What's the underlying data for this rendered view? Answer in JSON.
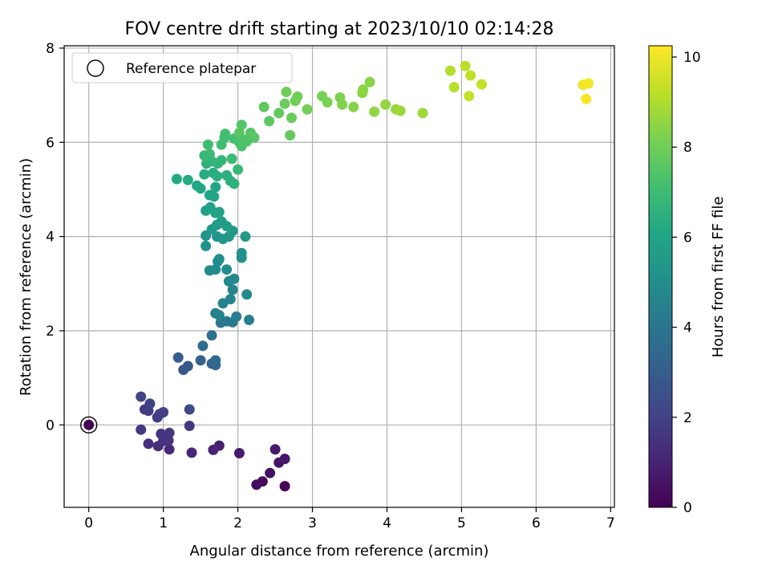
{
  "chart_data": {
    "type": "scatter",
    "title": "FOV centre drift starting at 2023/10/10 02:14:28",
    "xlabel": "Angular distance from reference (arcmin)",
    "ylabel": "Rotation from reference (arcmin)",
    "xlim": [
      -0.33,
      7.05
    ],
    "ylim": [
      -1.75,
      8.05
    ],
    "xticks": [
      "0",
      "1",
      "2",
      "3",
      "4",
      "5",
      "6",
      "7"
    ],
    "yticks": [
      "0",
      "2",
      "4",
      "6",
      "8"
    ],
    "grid": true,
    "colorbar": {
      "label": "Hours from first FF file",
      "colormap": "viridis",
      "range": [
        0,
        10.25
      ],
      "ticks": [
        "0",
        "2",
        "4",
        "6",
        "8",
        "10"
      ]
    },
    "legend": {
      "position": "top-left",
      "entries": [
        "Reference platepar"
      ]
    },
    "reference_point": {
      "x": 0,
      "y": 0
    },
    "series": [
      {
        "points": [
          [
            0,
            0,
            0.0
          ],
          [
            2.63,
            -1.3,
            0.15
          ],
          [
            2.33,
            -1.2,
            0.25
          ],
          [
            2.25,
            -1.27,
            0.35
          ],
          [
            2.43,
            -1.02,
            0.45
          ],
          [
            2.55,
            -0.8,
            0.55
          ],
          [
            2.63,
            -0.72,
            0.6
          ],
          [
            2.5,
            -0.52,
            0.7
          ],
          [
            2.02,
            -0.6,
            0.8
          ],
          [
            1.75,
            -0.44,
            0.9
          ],
          [
            1.67,
            -0.53,
            1.0
          ],
          [
            1.38,
            -0.59,
            1.1
          ],
          [
            1.08,
            -0.52,
            1.2
          ],
          [
            0.93,
            -0.45,
            1.3
          ],
          [
            0.8,
            -0.4,
            1.35
          ],
          [
            1.0,
            -0.34,
            1.45
          ],
          [
            1.07,
            -0.33,
            1.5
          ],
          [
            0.97,
            -0.19,
            1.55
          ],
          [
            1.08,
            -0.17,
            1.6
          ],
          [
            0.7,
            -0.1,
            1.65
          ],
          [
            1.35,
            -0.02,
            1.7
          ],
          [
            0.75,
            0.33,
            1.75
          ],
          [
            0.8,
            0.3,
            1.8
          ],
          [
            0.92,
            0.16,
            1.85
          ],
          [
            0.95,
            0.23,
            1.9
          ],
          [
            1.0,
            0.27,
            1.95
          ],
          [
            0.82,
            0.45,
            2.0
          ],
          [
            0.7,
            0.6,
            2.1
          ],
          [
            1.35,
            0.33,
            2.3
          ],
          [
            1.27,
            1.17,
            2.8
          ],
          [
            1.33,
            1.25,
            2.9
          ],
          [
            1.2,
            1.43,
            3.0
          ],
          [
            1.5,
            1.37,
            3.2
          ],
          [
            1.65,
            1.3,
            3.3
          ],
          [
            1.7,
            1.27,
            3.4
          ],
          [
            1.7,
            1.37,
            3.5
          ],
          [
            1.53,
            1.68,
            3.6
          ],
          [
            1.65,
            1.9,
            3.8
          ],
          [
            1.77,
            2.17,
            4.0
          ],
          [
            1.85,
            2.2,
            4.1
          ],
          [
            1.93,
            2.18,
            4.2
          ],
          [
            1.98,
            2.3,
            4.3
          ],
          [
            2.15,
            2.23,
            4.4
          ],
          [
            1.7,
            2.37,
            4.45
          ],
          [
            1.75,
            2.33,
            4.5
          ],
          [
            1.8,
            2.58,
            4.55
          ],
          [
            1.9,
            2.67,
            4.6
          ],
          [
            1.93,
            2.87,
            4.65
          ],
          [
            1.88,
            3.05,
            4.7
          ],
          [
            1.95,
            3.1,
            4.75
          ],
          [
            2.12,
            2.77,
            4.8
          ],
          [
            1.62,
            3.28,
            4.85
          ],
          [
            1.7,
            3.3,
            4.9
          ],
          [
            1.73,
            3.47,
            4.95
          ],
          [
            1.75,
            3.52,
            5.0
          ],
          [
            1.85,
            3.3,
            5.05
          ],
          [
            2.05,
            3.55,
            5.1
          ],
          [
            2.05,
            3.65,
            5.15
          ],
          [
            1.57,
            3.8,
            5.2
          ],
          [
            1.57,
            4.02,
            5.25
          ],
          [
            1.72,
            4.0,
            5.3
          ],
          [
            1.8,
            3.95,
            5.35
          ],
          [
            1.88,
            4.0,
            5.4
          ],
          [
            1.93,
            4.12,
            5.45
          ],
          [
            2.1,
            4.0,
            5.5
          ],
          [
            1.65,
            4.15,
            5.55
          ],
          [
            1.72,
            4.25,
            5.6
          ],
          [
            1.78,
            4.32,
            5.65
          ],
          [
            1.85,
            4.22,
            5.7
          ],
          [
            1.57,
            4.55,
            5.75
          ],
          [
            1.63,
            4.62,
            5.8
          ],
          [
            1.7,
            4.5,
            5.85
          ],
          [
            1.75,
            4.52,
            5.9
          ],
          [
            1.62,
            4.88,
            5.95
          ],
          [
            1.68,
            4.85,
            6.0
          ],
          [
            1.7,
            5.05,
            6.05
          ],
          [
            1.5,
            5.02,
            6.1
          ],
          [
            1.45,
            5.08,
            6.15
          ],
          [
            1.18,
            5.22,
            6.2
          ],
          [
            1.33,
            5.2,
            6.25
          ],
          [
            1.55,
            5.32,
            6.3
          ],
          [
            1.67,
            5.35,
            6.35
          ],
          [
            1.72,
            5.28,
            6.4
          ],
          [
            1.85,
            5.3,
            6.45
          ],
          [
            1.9,
            5.18,
            6.5
          ],
          [
            1.95,
            5.12,
            6.55
          ],
          [
            1.58,
            5.55,
            6.6
          ],
          [
            1.65,
            5.6,
            6.65
          ],
          [
            1.73,
            5.55,
            6.7
          ],
          [
            1.78,
            5.62,
            6.75
          ],
          [
            2.0,
            5.42,
            6.8
          ],
          [
            1.55,
            5.72,
            6.85
          ],
          [
            1.62,
            5.75,
            6.9
          ],
          [
            1.92,
            5.65,
            6.95
          ],
          [
            1.6,
            5.95,
            7.0
          ],
          [
            1.78,
            5.95,
            7.05
          ],
          [
            1.82,
            6.1,
            7.1
          ],
          [
            1.83,
            6.18,
            7.15
          ],
          [
            1.95,
            6.08,
            7.2
          ],
          [
            2.02,
            6.0,
            7.25
          ],
          [
            2.05,
            5.92,
            7.3
          ],
          [
            2.1,
            6.05,
            7.35
          ],
          [
            2.12,
            6.02,
            7.4
          ],
          [
            2.05,
            6.37,
            7.45
          ],
          [
            2.17,
            6.2,
            7.5
          ],
          [
            2.22,
            6.1,
            7.55
          ],
          [
            2.02,
            6.2,
            7.6
          ],
          [
            2.42,
            6.45,
            7.65
          ],
          [
            2.35,
            6.75,
            7.7
          ],
          [
            2.55,
            6.62,
            7.75
          ],
          [
            2.7,
            6.15,
            7.8
          ],
          [
            2.72,
            6.52,
            7.85
          ],
          [
            2.63,
            6.82,
            7.9
          ],
          [
            2.65,
            7.07,
            7.95
          ],
          [
            2.8,
            6.97,
            8.0
          ],
          [
            2.77,
            6.88,
            8.05
          ],
          [
            2.93,
            6.7,
            8.1
          ],
          [
            3.13,
            6.98,
            8.15
          ],
          [
            3.2,
            6.85,
            8.2
          ],
          [
            3.37,
            6.95,
            8.25
          ],
          [
            3.4,
            6.8,
            8.3
          ],
          [
            3.55,
            6.75,
            8.35
          ],
          [
            3.67,
            7.05,
            8.4
          ],
          [
            3.77,
            7.28,
            8.45
          ],
          [
            3.68,
            7.12,
            8.5
          ],
          [
            3.83,
            6.65,
            8.55
          ],
          [
            3.98,
            6.8,
            8.6
          ],
          [
            4.12,
            6.7,
            8.65
          ],
          [
            4.18,
            6.67,
            8.7
          ],
          [
            4.48,
            6.62,
            8.75
          ],
          [
            4.85,
            7.52,
            9.1
          ],
          [
            4.9,
            7.17,
            9.15
          ],
          [
            5.05,
            7.62,
            9.2
          ],
          [
            5.12,
            7.42,
            9.25
          ],
          [
            5.27,
            7.23,
            9.3
          ],
          [
            5.1,
            6.98,
            9.35
          ],
          [
            6.63,
            7.22,
            10.05
          ],
          [
            6.7,
            7.25,
            10.1
          ],
          [
            6.67,
            6.92,
            10.15
          ]
        ]
      }
    ]
  }
}
